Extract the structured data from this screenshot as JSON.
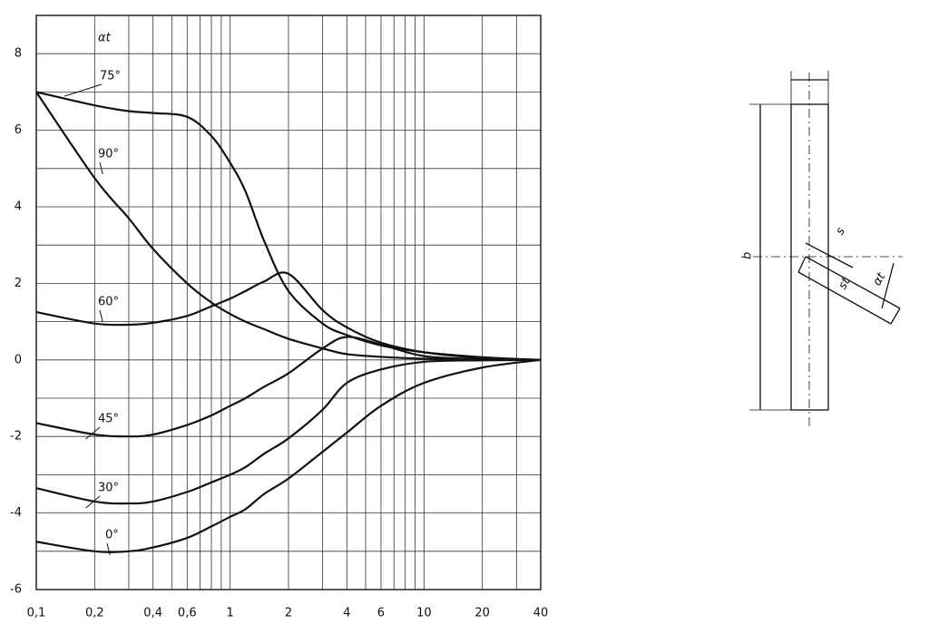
{
  "chart_data": {
    "type": "line",
    "ylabel": "αt",
    "xscale": "log",
    "grid": true,
    "color": "#111111",
    "x": [
      0.1,
      0.2,
      0.3,
      0.4,
      0.6,
      0.8,
      1,
      1.2,
      1.5,
      2,
      3,
      4,
      6,
      10,
      20,
      40
    ],
    "series": [
      {
        "name": "75°",
        "color": "#111111",
        "values": [
          7.0,
          6.65,
          6.5,
          6.45,
          6.35,
          5.85,
          5.15,
          4.4,
          3.1,
          1.8,
          0.95,
          0.65,
          0.38,
          0.2,
          0.07,
          0
        ]
      },
      {
        "name": "90°",
        "color": "#111111",
        "values": [
          7.0,
          4.75,
          3.7,
          2.9,
          2.0,
          1.5,
          1.2,
          1.0,
          0.8,
          0.55,
          0.3,
          0.15,
          0.08,
          0.03,
          0.01,
          0
        ]
      },
      {
        "name": "60°",
        "color": "#111111",
        "values": [
          1.25,
          0.95,
          0.92,
          0.97,
          1.15,
          1.4,
          1.6,
          1.8,
          2.05,
          2.25,
          1.3,
          0.85,
          0.45,
          0.2,
          0.05,
          0
        ]
      },
      {
        "name": "45°",
        "color": "#111111",
        "values": [
          -1.65,
          -1.95,
          -2.0,
          -1.95,
          -1.7,
          -1.45,
          -1.2,
          -1.0,
          -0.7,
          -0.35,
          0.3,
          0.6,
          0.4,
          0.1,
          0.02,
          0
        ]
      },
      {
        "name": "30°",
        "color": "#111111",
        "values": [
          -3.35,
          -3.7,
          -3.75,
          -3.7,
          -3.45,
          -3.2,
          -3.0,
          -2.8,
          -2.45,
          -2.05,
          -1.3,
          -0.6,
          -0.25,
          -0.05,
          -0.01,
          0
        ]
      },
      {
        "name": "0°",
        "color": "#111111",
        "values": [
          -4.75,
          -5.0,
          -5.0,
          -4.9,
          -4.65,
          -4.35,
          -4.1,
          -3.9,
          -3.5,
          -3.1,
          -2.4,
          -1.9,
          -1.2,
          -0.6,
          -0.2,
          0
        ]
      }
    ],
    "xlim": [
      0.1,
      40
    ],
    "xticks": [
      {
        "value": 0.1,
        "label": "0,1"
      },
      {
        "value": 0.2,
        "label": "0,2"
      },
      {
        "value": 0.4,
        "label": "0,4"
      },
      {
        "value": 0.6,
        "label": "0,6"
      },
      1,
      2,
      4,
      6,
      10,
      20,
      40
    ],
    "xminor": [
      0.3,
      0.5,
      0.7,
      0.8,
      0.9,
      3,
      5,
      7,
      8,
      9,
      30
    ],
    "ylim": [
      -6,
      9
    ],
    "yticks": [
      -6,
      -4,
      -2,
      0,
      2,
      4,
      6,
      8
    ],
    "yminor": [
      -5,
      -3,
      -1,
      1,
      3,
      5,
      7,
      9
    ]
  },
  "diagram": {
    "labels": [
      "b",
      "s",
      "st",
      "αt"
    ]
  }
}
